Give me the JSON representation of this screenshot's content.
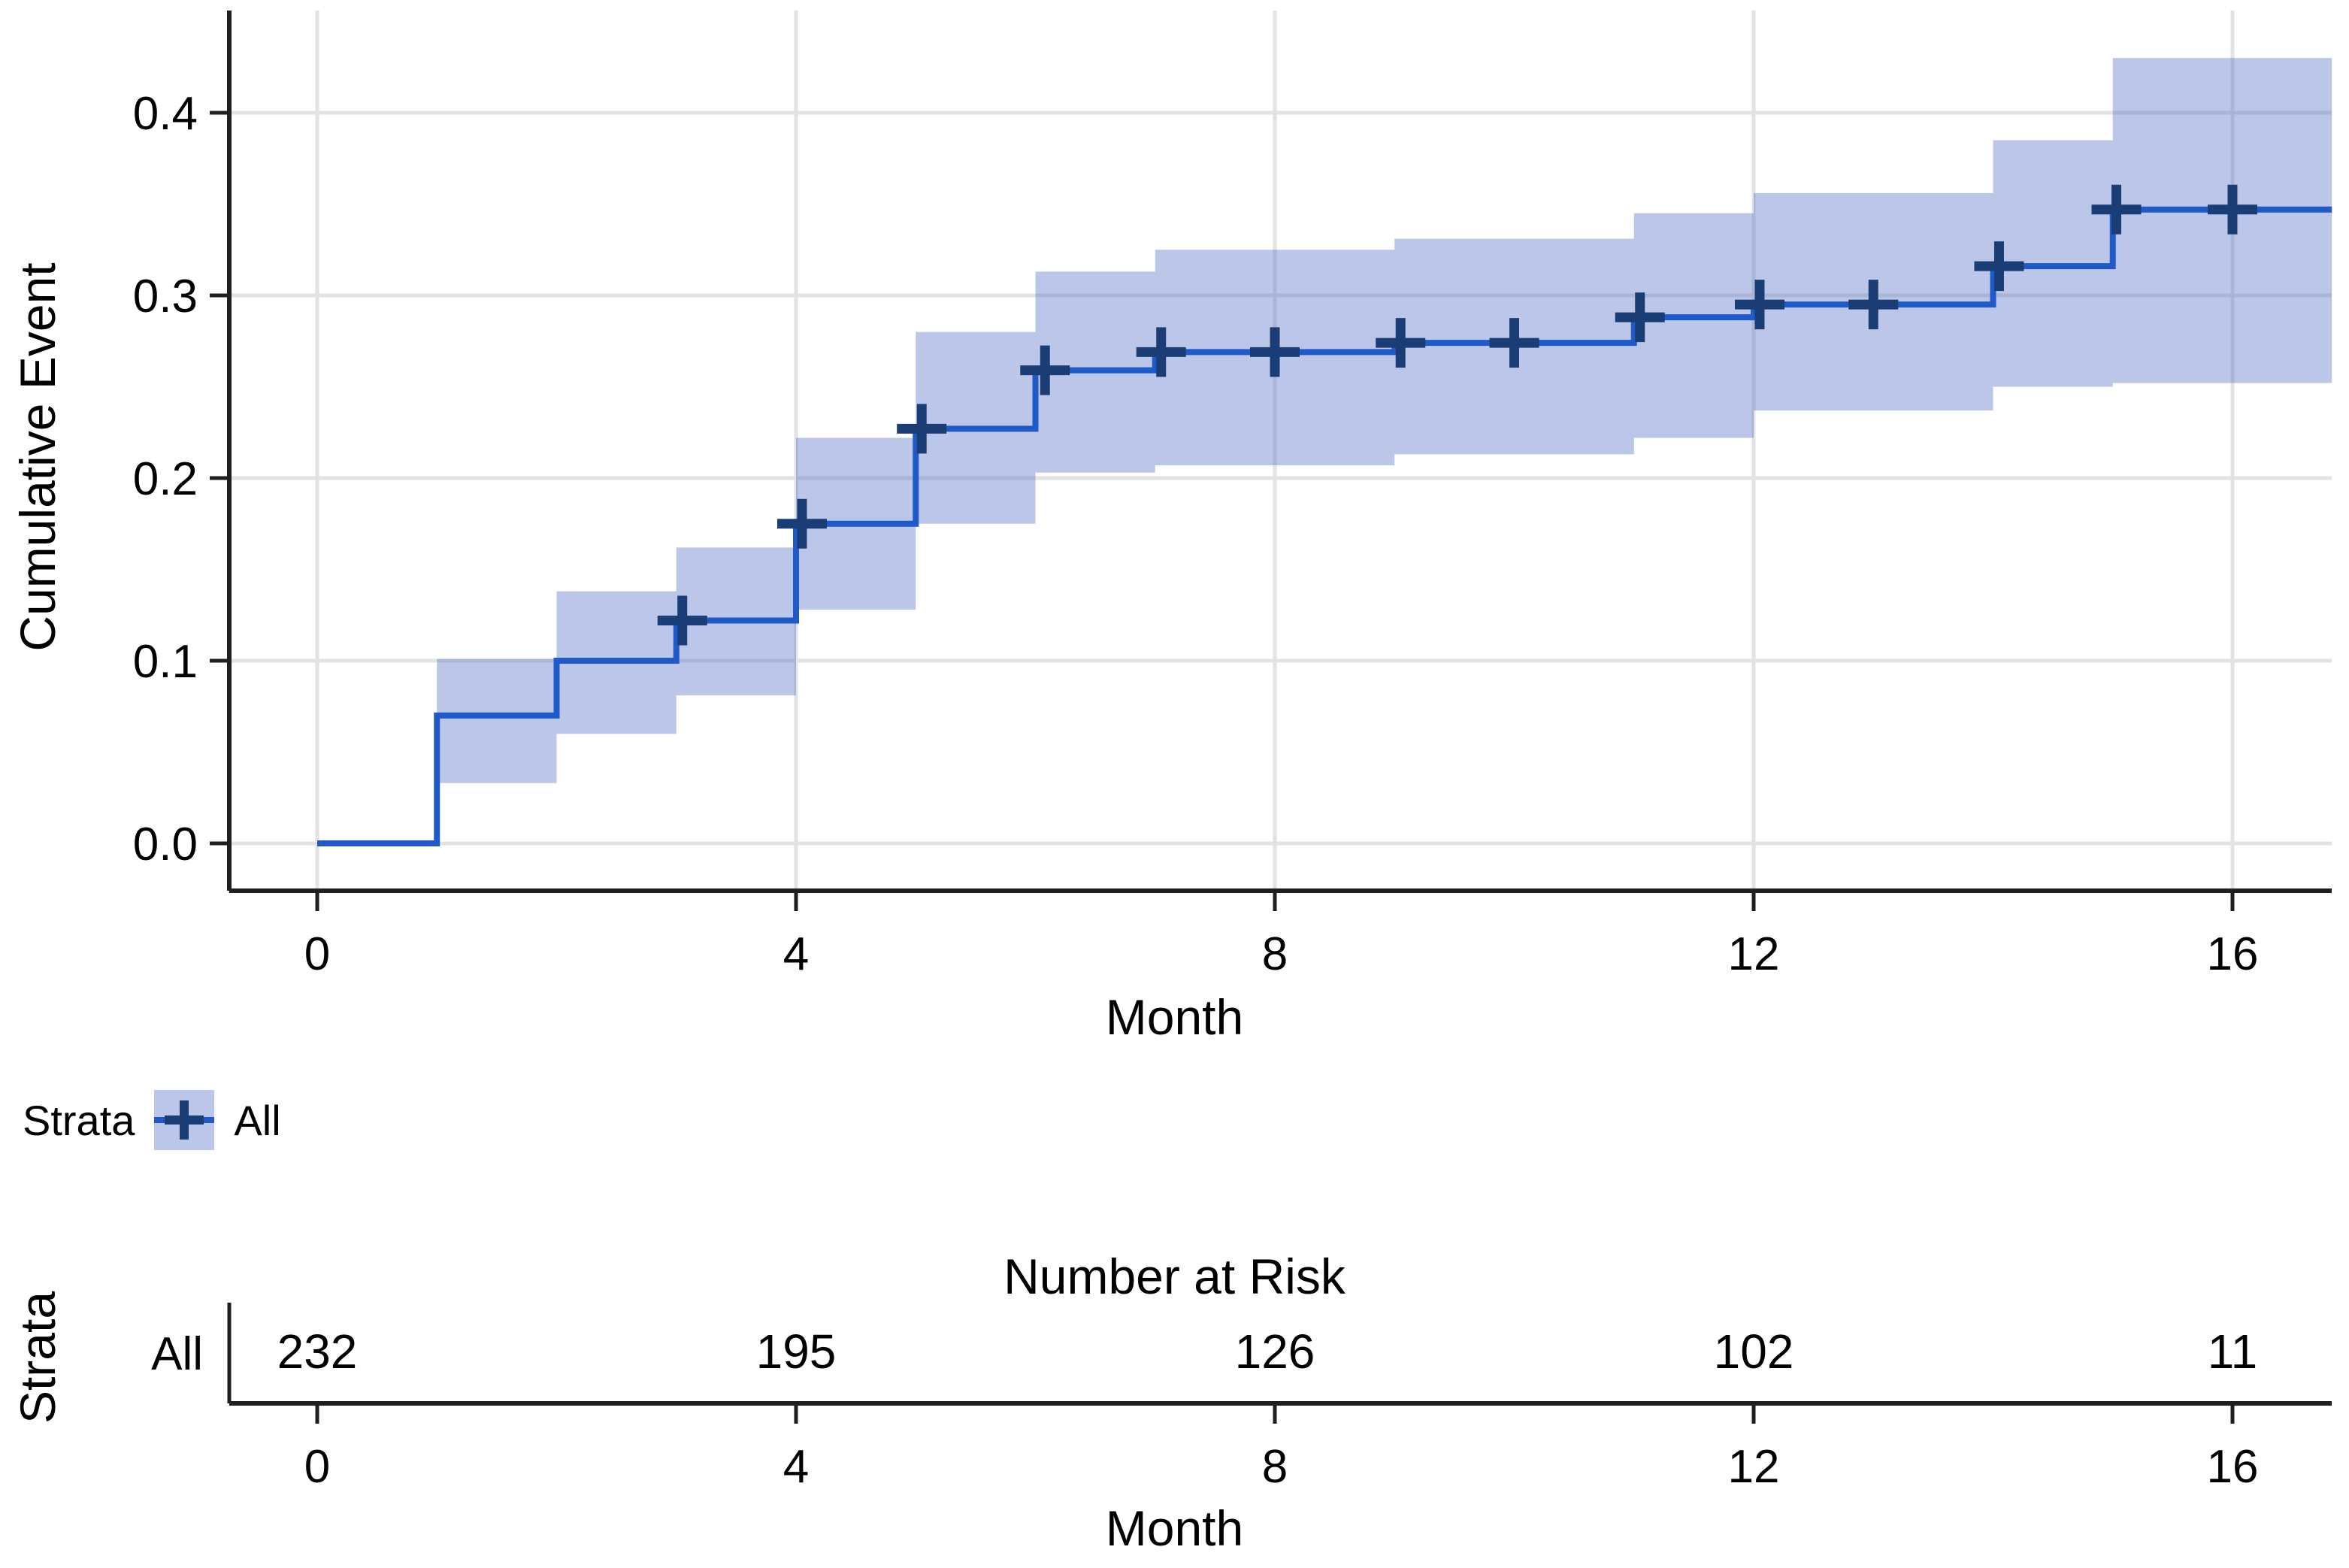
{
  "figure": {
    "y_axis_title": "Cumulative Event",
    "x_axis_title": "Month",
    "y_tick_labels": [
      "0.0",
      "0.1",
      "0.2",
      "0.3",
      "0.4"
    ],
    "x_tick_labels": [
      "0",
      "4",
      "8",
      "12",
      "16"
    ],
    "legend": {
      "title": "Strata",
      "items": [
        {
          "label": "All"
        }
      ]
    },
    "risk_table": {
      "title": "Number at Risk",
      "axis_label": "Strata",
      "x_axis_title": "Month",
      "x_tick_labels": [
        "0",
        "4",
        "8",
        "12",
        "16"
      ],
      "rows": [
        {
          "label": "All",
          "values": [
            "232",
            "195",
            "126",
            "102",
            "11"
          ]
        }
      ]
    }
  },
  "colors": {
    "curve_line": "#1f5ac8",
    "censor_mark": "#1b3d76",
    "ci_band_fill": "#3f5cbf",
    "ci_band_opacity": 0.35,
    "gridline": "#e3e3e3",
    "axis_line": "#1f1f1f",
    "text": "#000000"
  },
  "chart_data": {
    "type": "line",
    "subtype": "kaplan-meier-cumulative-event-step-curve",
    "title": "",
    "xlabel": "Month",
    "ylabel": "Cumulative Event",
    "xticks": [
      0,
      4,
      8,
      12,
      16
    ],
    "yticks": [
      0.0,
      0.1,
      0.2,
      0.3,
      0.4
    ],
    "xlim": [
      -0.7,
      16.85
    ],
    "ylim": [
      -0.026,
      0.455
    ],
    "grid": true,
    "legend_position": "bottom-left",
    "series": [
      {
        "name": "All",
        "steps": [
          [
            0,
            0.0
          ],
          [
            1,
            0.07
          ],
          [
            2,
            0.1
          ],
          [
            3,
            0.122
          ],
          [
            4,
            0.175
          ],
          [
            5,
            0.227
          ],
          [
            6,
            0.259
          ],
          [
            7,
            0.269
          ],
          [
            9,
            0.274
          ],
          [
            11,
            0.288
          ],
          [
            12,
            0.295
          ],
          [
            14,
            0.316
          ],
          [
            15,
            0.347
          ]
        ],
        "end_x": 16.83,
        "censors": [
          [
            3.05,
            0.122
          ],
          [
            4.05,
            0.175
          ],
          [
            5.05,
            0.227
          ],
          [
            6.08,
            0.259
          ],
          [
            7.05,
            0.269
          ],
          [
            8.0,
            0.269
          ],
          [
            9.05,
            0.274
          ],
          [
            10.0,
            0.274
          ],
          [
            11.05,
            0.288
          ],
          [
            12.05,
            0.295
          ],
          [
            13.0,
            0.295
          ],
          [
            14.05,
            0.316
          ],
          [
            15.03,
            0.347
          ],
          [
            16.0,
            0.347
          ]
        ],
        "ci_band": [
          [
            1,
            2,
            0.033,
            0.101
          ],
          [
            2,
            3,
            0.06,
            0.138
          ],
          [
            3,
            4,
            0.081,
            0.162
          ],
          [
            4,
            5,
            0.128,
            0.222
          ],
          [
            5,
            6,
            0.175,
            0.28
          ],
          [
            6,
            7,
            0.203,
            0.313
          ],
          [
            7,
            9,
            0.207,
            0.325
          ],
          [
            9,
            11,
            0.213,
            0.331
          ],
          [
            11,
            12,
            0.222,
            0.345
          ],
          [
            12,
            14,
            0.237,
            0.356
          ],
          [
            14,
            15,
            0.25,
            0.385
          ],
          [
            15,
            16.83,
            0.252,
            0.43
          ]
        ]
      }
    ],
    "number_at_risk": {
      "strata": "All",
      "times": [
        0,
        4,
        8,
        12,
        16
      ],
      "values": [
        232,
        195,
        126,
        102,
        11
      ]
    }
  }
}
